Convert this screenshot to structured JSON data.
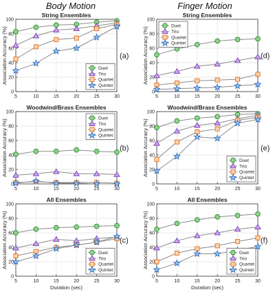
{
  "column_titles": [
    "Body Motion",
    "Finger Motion"
  ],
  "chart_data": [
    {
      "type": "line",
      "title": "String Ensembles",
      "panel_label": "(a)",
      "x": [
        5,
        10,
        15,
        20,
        25,
        30
      ],
      "xlim": [
        5,
        30
      ],
      "ylim": [
        0,
        100
      ],
      "yticks": [
        0,
        20,
        40,
        60,
        80,
        100
      ],
      "xlabel": "",
      "ylabel": "Association Accuracy (%)",
      "legend_position": "bottom-right",
      "series": [
        {
          "name": "Duet",
          "marker": "circle",
          "values": [
            83,
            89,
            92,
            93,
            96,
            98
          ]
        },
        {
          "name": "Trio",
          "marker": "triangle",
          "values": [
            64,
            77,
            85,
            87,
            91,
            95
          ]
        },
        {
          "name": "Quartet",
          "marker": "square",
          "values": [
            45,
            62,
            72,
            74,
            87,
            93
          ]
        },
        {
          "name": "Quintet",
          "marker": "star",
          "values": [
            29,
            39,
            56,
            60,
            75,
            90
          ]
        }
      ]
    },
    {
      "type": "line",
      "title": "String Ensembles",
      "panel_label": "(d)",
      "x": [
        5,
        10,
        15,
        20,
        25,
        30
      ],
      "xlim": [
        5,
        30
      ],
      "ylim": [
        0,
        100
      ],
      "yticks": [
        0,
        20,
        40,
        60,
        80,
        100
      ],
      "xlabel": "",
      "ylabel": "Association Accuracy (%)",
      "legend_position": "top-left",
      "series": [
        {
          "name": "Duet",
          "marker": "circle",
          "values": [
            51,
            59,
            65,
            70,
            72,
            73
          ]
        },
        {
          "name": "Trio",
          "marker": "triangle",
          "values": [
            22,
            28,
            35,
            38,
            43,
            48
          ]
        },
        {
          "name": "Quartet",
          "marker": "square",
          "values": [
            9,
            12,
            15,
            16,
            17,
            24
          ]
        },
        {
          "name": "Quintet",
          "marker": "star",
          "values": [
            3,
            4,
            5,
            6,
            8,
            10
          ]
        }
      ]
    },
    {
      "type": "line",
      "title": "Woodwind/Brass Ensembles",
      "panel_label": "(b)",
      "x": [
        5,
        10,
        15,
        20,
        25,
        30
      ],
      "xlim": [
        5,
        30
      ],
      "ylim": [
        0,
        100
      ],
      "yticks": [
        0,
        20,
        40,
        60,
        80,
        100
      ],
      "xlabel": "",
      "ylabel": "Association Accuracy (%)",
      "legend_position": "top-right",
      "series": [
        {
          "name": "Duet",
          "marker": "circle",
          "values": [
            41,
            45,
            45,
            47,
            45,
            44
          ]
        },
        {
          "name": "Trio",
          "marker": "triangle",
          "values": [
            12,
            14,
            17,
            14,
            14,
            13
          ]
        },
        {
          "name": "Quartet",
          "marker": "square",
          "values": [
            2,
            3,
            2,
            2,
            2,
            1
          ]
        },
        {
          "name": "Quintet",
          "marker": "star",
          "values": [
            1,
            4,
            1,
            1,
            0,
            0
          ]
        }
      ]
    },
    {
      "type": "line",
      "title": "Woodwind/Brass Ensembles",
      "panel_label": "(e)",
      "x": [
        5,
        10,
        15,
        20,
        25,
        30
      ],
      "xlim": [
        5,
        30
      ],
      "ylim": [
        0,
        100
      ],
      "yticks": [
        0,
        20,
        40,
        60,
        80,
        100
      ],
      "xlabel": "",
      "ylabel": "Association Accuracy (%)",
      "legend_position": "bottom-right",
      "series": [
        {
          "name": "Duet",
          "marker": "circle",
          "values": [
            78,
            87,
            91,
            93,
            96,
            97
          ]
        },
        {
          "name": "Trio",
          "marker": "triangle",
          "values": [
            56,
            73,
            81,
            84,
            90,
            95
          ]
        },
        {
          "name": "Quartet",
          "marker": "square",
          "values": [
            34,
            58,
            72,
            76,
            88,
            92
          ]
        },
        {
          "name": "Quintet",
          "marker": "star",
          "values": [
            18,
            38,
            65,
            63,
            84,
            89
          ]
        }
      ]
    },
    {
      "type": "line",
      "title": "All Ensembles",
      "panel_label": "(c)",
      "x": [
        5,
        10,
        15,
        20,
        25,
        30
      ],
      "xlim": [
        5,
        30
      ],
      "ylim": [
        0,
        100
      ],
      "yticks": [
        0,
        20,
        40,
        60,
        80,
        100
      ],
      "xlabel": "Duration (sec)",
      "ylabel": "Association Accuracy (%)",
      "legend_position": "bottom-right",
      "series": [
        {
          "name": "Duet",
          "marker": "circle",
          "values": [
            60,
            65,
            67,
            68,
            69,
            70
          ]
        },
        {
          "name": "Trio",
          "marker": "triangle",
          "values": [
            39,
            45,
            51,
            49,
            52,
            54
          ]
        },
        {
          "name": "Quartet",
          "marker": "square",
          "values": [
            28,
            34,
            40,
            43,
            47,
            52
          ]
        },
        {
          "name": "Quintet",
          "marker": "star",
          "values": [
            20,
            28,
            38,
            43,
            47,
            55
          ]
        }
      ]
    },
    {
      "type": "line",
      "title": "All Ensembles",
      "panel_label": "(f)",
      "x": [
        5,
        10,
        15,
        20,
        25,
        30
      ],
      "xlim": [
        5,
        30
      ],
      "ylim": [
        0,
        100
      ],
      "yticks": [
        0,
        20,
        40,
        60,
        80,
        100
      ],
      "xlabel": "Duration (sec)",
      "ylabel": "Association Accuracy (%)",
      "legend_position": "bottom-right",
      "series": [
        {
          "name": "Duet",
          "marker": "circle",
          "values": [
            65,
            73,
            78,
            82,
            84,
            86
          ]
        },
        {
          "name": "Trio",
          "marker": "triangle",
          "values": [
            39,
            49,
            56,
            60,
            65,
            68
          ]
        },
        {
          "name": "Quartet",
          "marker": "square",
          "values": [
            20,
            32,
            38,
            42,
            48,
            53
          ]
        },
        {
          "name": "Quintet",
          "marker": "star",
          "values": [
            9,
            18,
            31,
            31,
            36,
            41
          ]
        }
      ]
    }
  ],
  "series_colors": {
    "Duet": {
      "stroke": "#2e8b2e",
      "fill": "#8fd18f"
    },
    "Trio": {
      "stroke": "#7b3fb0",
      "fill": "#c9a6ee"
    },
    "Quartet": {
      "stroke": "#e0701e",
      "fill": "#fcd2ad"
    },
    "Quintet": {
      "stroke": "#2f6fc0",
      "fill": "#9cc4f3"
    }
  },
  "line_color": "#8a8a8a"
}
